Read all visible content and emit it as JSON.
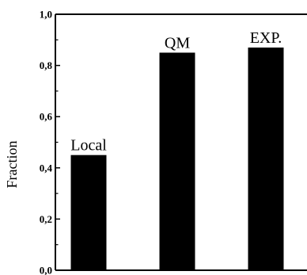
{
  "chart_data": {
    "type": "bar",
    "categories": [
      "Local",
      "QM",
      "EXP."
    ],
    "values": [
      0.45,
      0.85,
      0.87
    ],
    "bar_labels": [
      "Local",
      "QM",
      "EXP."
    ],
    "ylabel": "Fraction",
    "xlabel": "",
    "title": "",
    "ylim": [
      0.0,
      1.0
    ],
    "yticks": [
      0.0,
      0.2,
      0.4,
      0.6,
      0.8,
      1.0
    ],
    "ytick_labels": [
      "0,0",
      "0,2",
      "0,4",
      "0,6",
      "0,8",
      "1,0"
    ],
    "grid": false,
    "legend": "none",
    "bar_color": "#000000",
    "axis_color": "#000000",
    "background": "#ffffff"
  }
}
